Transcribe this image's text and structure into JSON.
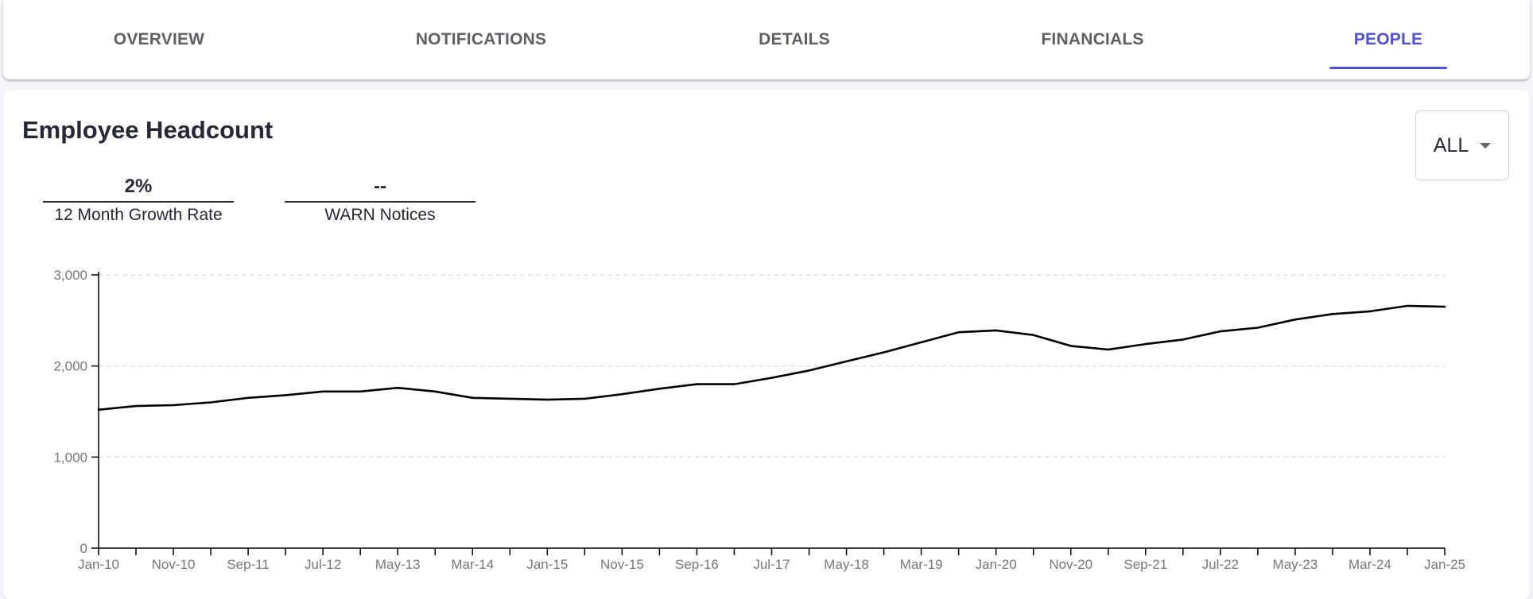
{
  "tabs": [
    {
      "label": "OVERVIEW",
      "active": false
    },
    {
      "label": "NOTIFICATIONS",
      "active": false
    },
    {
      "label": "DETAILS",
      "active": false
    },
    {
      "label": "FINANCIALS",
      "active": false
    },
    {
      "label": "PEOPLE",
      "active": true
    }
  ],
  "section": {
    "title": "Employee Headcount",
    "filter": {
      "selected": "ALL",
      "icon": "caret-down-icon"
    },
    "stats": [
      {
        "value": "2%",
        "label": "12 Month Growth Rate"
      },
      {
        "value": "--",
        "label": "WARN Notices"
      }
    ]
  },
  "colors": {
    "accent": "#5050d2",
    "text": "#262837",
    "line": "#000000",
    "grid": "#dddddd"
  },
  "chart_data": {
    "type": "line",
    "title": "",
    "xlabel": "",
    "ylabel": "",
    "ylim": [
      0,
      3000
    ],
    "y_ticks": [
      "0",
      "1,000",
      "2,000",
      "3,000"
    ],
    "y_tick_values": [
      0,
      1000,
      2000,
      3000
    ],
    "x_tick_labels": [
      "Jan-10",
      "Nov-10",
      "Sep-11",
      "Jul-12",
      "May-13",
      "Mar-14",
      "Jan-15",
      "Nov-15",
      "Sep-16",
      "Jul-17",
      "May-18",
      "Mar-19",
      "Jan-20",
      "Nov-20",
      "Sep-21",
      "Jul-22",
      "May-23",
      "Mar-24",
      "Jan-25"
    ],
    "grid": true,
    "series": [
      {
        "x": [
          "Jan-10",
          "Jun-10",
          "Nov-10",
          "Apr-11",
          "Sep-11",
          "Feb-12",
          "Jul-12",
          "Dec-12",
          "May-13",
          "Oct-13",
          "Mar-14",
          "Aug-14",
          "Jan-15",
          "Jun-15",
          "Nov-15",
          "Apr-16",
          "Sep-16",
          "Feb-17",
          "Jul-17",
          "Dec-17",
          "May-18",
          "Oct-18",
          "Mar-19",
          "Aug-19",
          "Jan-20",
          "Jun-20",
          "Nov-20",
          "Apr-21",
          "Sep-21",
          "Feb-22",
          "Jul-22",
          "Dec-22",
          "May-23",
          "Oct-23",
          "Mar-24",
          "Aug-24",
          "Jan-25"
        ],
        "values": [
          1520,
          1560,
          1570,
          1600,
          1650,
          1680,
          1720,
          1720,
          1760,
          1720,
          1650,
          1640,
          1630,
          1640,
          1690,
          1750,
          1800,
          1800,
          1870,
          1950,
          2050,
          2150,
          2260,
          2370,
          2390,
          2340,
          2220,
          2180,
          2240,
          2290,
          2380,
          2420,
          2510,
          2570,
          2600,
          2660,
          2650
        ]
      }
    ]
  }
}
